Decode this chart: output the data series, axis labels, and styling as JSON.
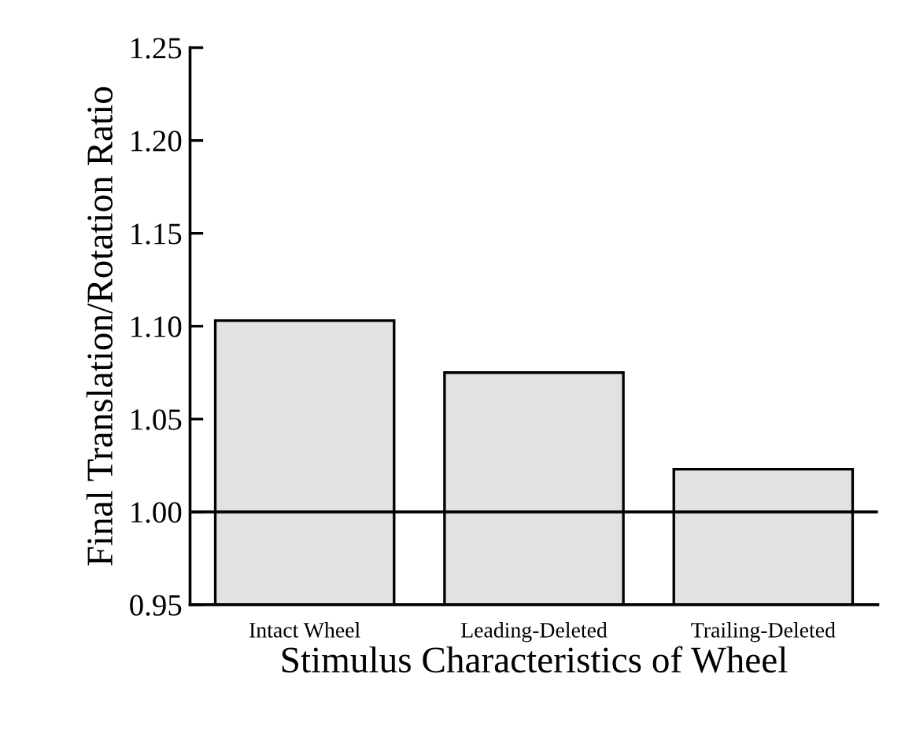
{
  "chart_data": {
    "type": "bar",
    "xlabel": "Stimulus Characteristics of Wheel",
    "ylabel": "Final Translation/Rotation Ratio",
    "categories": [
      "Intact Wheel",
      "Leading-Deleted",
      "Trailing-Deleted"
    ],
    "values": [
      1.103,
      1.075,
      1.023
    ],
    "color": "#e2e2e2",
    "ylim": [
      0.95,
      1.25
    ],
    "yticks": [
      {
        "value": 0.95,
        "label": "0.95"
      },
      {
        "value": 1.0,
        "label": "1.00"
      },
      {
        "value": 1.05,
        "label": "1.05"
      },
      {
        "value": 1.1,
        "label": "1.10"
      },
      {
        "value": 1.15,
        "label": "1.15"
      },
      {
        "value": 1.2,
        "label": "1.20"
      },
      {
        "value": 1.25,
        "label": "1.25"
      }
    ],
    "ref_lines": [
      {
        "axis": "y",
        "value": 1.0,
        "color": "#000000"
      }
    ],
    "grid": false,
    "legend": false
  }
}
